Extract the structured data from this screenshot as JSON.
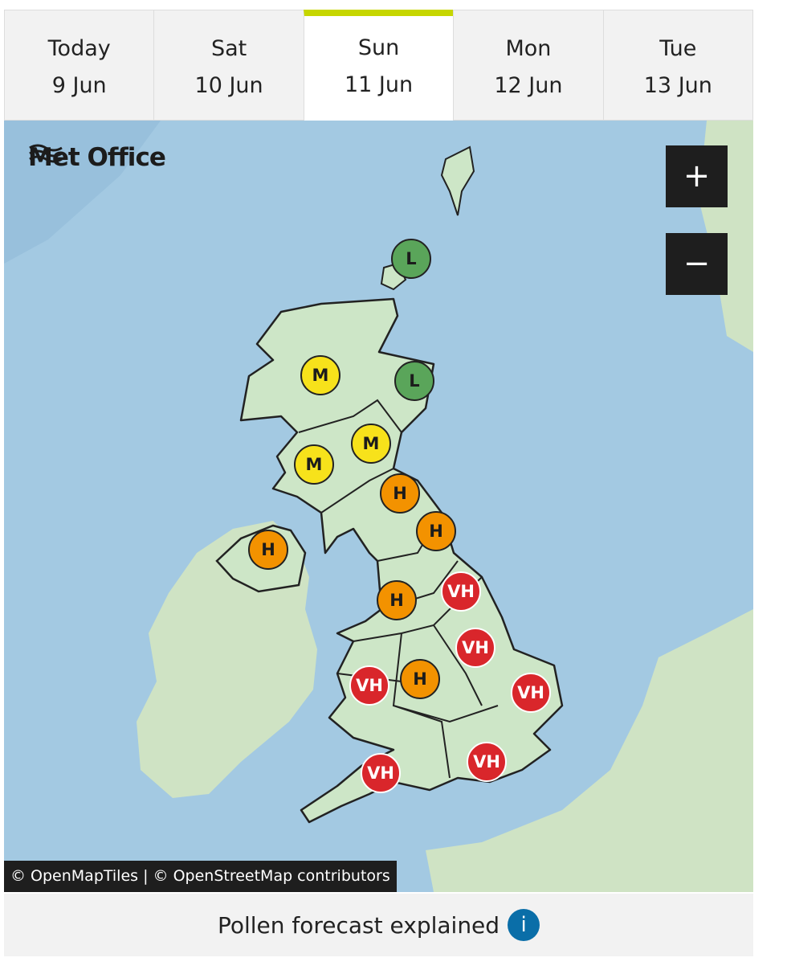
{
  "tabs": [
    {
      "day": "Today",
      "date": "9 Jun"
    },
    {
      "day": "Sat",
      "date": "10 Jun"
    },
    {
      "day": "Sun",
      "date": "11 Jun"
    },
    {
      "day": "Mon",
      "date": "12 Jun"
    },
    {
      "day": "Tue",
      "date": "13 Jun"
    }
  ],
  "map": {
    "logo": "Met Office",
    "zoom_in": "+",
    "zoom_out": "−",
    "markers": [
      "L",
      "M",
      "L",
      "M",
      "M",
      "H",
      "H",
      "H",
      "VH",
      "H",
      "VH",
      "H",
      "VH",
      "VH",
      "VH",
      "VH"
    ],
    "attribution": "© OpenMapTiles | © OpenStreetMap contributors"
  },
  "footer": {
    "link": "Pollen forecast explained",
    "icon": "i"
  }
}
